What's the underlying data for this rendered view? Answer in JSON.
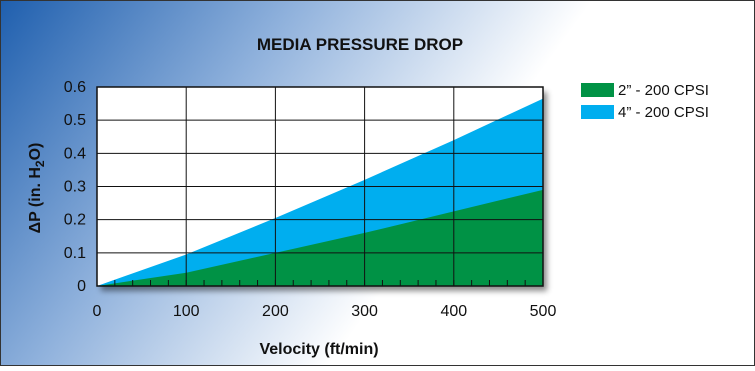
{
  "chart_data": {
    "type": "area",
    "title": "MEDIA PRESSURE DROP",
    "xlabel": "Velocity (ft/min)",
    "ylabel": {
      "main": "ΔP (in. H",
      "sub": "2",
      "tail": "O)"
    },
    "xlim": [
      0,
      500
    ],
    "ylim": [
      0,
      0.6
    ],
    "x_ticks": [
      "0",
      "100",
      "200",
      "300",
      "400",
      "500"
    ],
    "y_ticks": [
      "0",
      "0.1",
      "0.2",
      "0.3",
      "0.4",
      "0.5",
      "0.6"
    ],
    "grid": true,
    "legend_position": "right",
    "x": [
      0,
      100,
      200,
      300,
      400,
      500
    ],
    "series": [
      {
        "name": "4” - 200 CPSI",
        "color": "#00aeef",
        "values": [
          0,
          0.095,
          0.205,
          0.32,
          0.44,
          0.565
        ]
      },
      {
        "name": "2” - 200 CPSI",
        "color": "#009245",
        "values": [
          0,
          0.04,
          0.1,
          0.16,
          0.225,
          0.29
        ]
      }
    ],
    "legend_order": [
      1,
      0
    ]
  }
}
